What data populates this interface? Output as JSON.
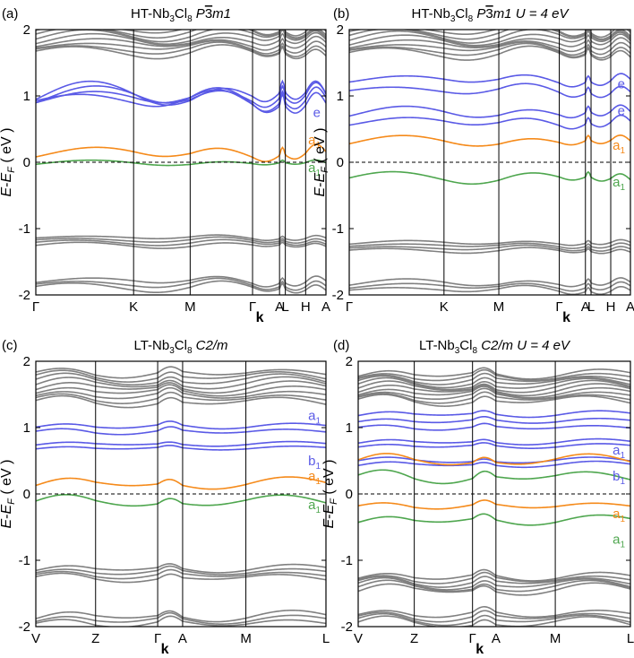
{
  "colors": {
    "gray": "#808080",
    "blue": "#5a5ae6",
    "orange": "#f58a1a",
    "green": "#4ea64e",
    "axis": "#000000"
  },
  "chart_data": [
    {
      "panel_label": "(a)",
      "type": "line",
      "title": "HT-Nb3Cl8 P-3m1",
      "title_parts": {
        "name": "HT-Nb",
        "sub1": "3",
        "mid": "Cl",
        "sub2": "8",
        "space": "P",
        "space_bar": "3",
        "space_tail": "m1",
        "extra": ""
      },
      "ylabel": "E-E_F (eV)",
      "xlabel": "k",
      "ylim": [
        -2,
        2
      ],
      "yticks": [
        -2,
        -1,
        0,
        1,
        2
      ],
      "ytick_labels": [
        "-2",
        "-1",
        "0",
        "1",
        "2"
      ],
      "kpoints": [
        "Γ",
        "K",
        "M",
        "Γ",
        "A",
        "L",
        "H",
        "A"
      ],
      "kpos": [
        0,
        0.337,
        0.532,
        0.747,
        0.84,
        0.86,
        0.93,
        1.0
      ],
      "band_labels": [
        {
          "text": "e",
          "sub": "",
          "y": 0.75,
          "color": "blue"
        },
        {
          "text": "a",
          "sub": "1",
          "y": 0.34,
          "color": "orange"
        },
        {
          "text": "a",
          "sub": "1",
          "y": -0.08,
          "color": "green"
        }
      ],
      "series": [
        {
          "name": "gray-upper",
          "color": "gray",
          "base": 1.82,
          "amp": 0.12,
          "count": 9,
          "spread": 0.18
        },
        {
          "name": "blue-e",
          "color": "blue",
          "base": 0.95,
          "amp": 0.22,
          "count": 4,
          "spread": 0.04
        },
        {
          "name": "orange-a1",
          "color": "orange",
          "base": 0.12,
          "amp": 0.15,
          "count": 1,
          "spread": 0
        },
        {
          "name": "green-a1",
          "color": "green",
          "base": -0.02,
          "amp": 0.05,
          "count": 1,
          "spread": 0
        },
        {
          "name": "gray-lower",
          "color": "gray",
          "base": -1.2,
          "amp": 0.05,
          "count": 4,
          "spread": 0.06
        },
        {
          "name": "gray-bottom",
          "color": "gray",
          "base": -1.85,
          "amp": 0.1,
          "count": 3,
          "spread": 0.05
        }
      ]
    },
    {
      "panel_label": "(b)",
      "type": "line",
      "title": "HT-Nb3Cl8 P-3m1 U = 4 eV",
      "title_parts": {
        "name": "HT-Nb",
        "sub1": "3",
        "mid": "Cl",
        "sub2": "8",
        "space": "P",
        "space_bar": "3",
        "space_tail": "m1",
        "extra": "U = 4 eV"
      },
      "ylabel": "E-E_F (eV)",
      "xlabel": "k",
      "ylim": [
        -2,
        2
      ],
      "yticks": [
        -2,
        -1,
        0,
        1,
        2
      ],
      "ytick_labels": [
        "-2",
        "-1",
        "0",
        "1",
        "2"
      ],
      "kpoints": [
        "Γ",
        "K",
        "M",
        "Γ",
        "A",
        "L",
        "H",
        "A"
      ],
      "kpos": [
        0,
        0.337,
        0.532,
        0.747,
        0.84,
        0.86,
        0.93,
        1.0
      ],
      "band_labels": [
        {
          "text": "e",
          "sub": "",
          "y": 1.18,
          "color": "blue"
        },
        {
          "text": "e",
          "sub": "",
          "y": 0.78,
          "color": "blue"
        },
        {
          "text": "a",
          "sub": "1",
          "y": 0.26,
          "color": "orange"
        },
        {
          "text": "a",
          "sub": "1",
          "y": -0.3,
          "color": "green"
        }
      ],
      "series": [
        {
          "name": "gray-upper",
          "color": "gray",
          "base": 1.8,
          "amp": 0.12,
          "count": 9,
          "spread": 0.18
        },
        {
          "name": "blue-e-upper",
          "color": "blue",
          "base": 1.15,
          "amp": 0.12,
          "count": 2,
          "spread": 0.08
        },
        {
          "name": "blue-e-lower",
          "color": "blue",
          "base": 0.66,
          "amp": 0.12,
          "count": 2,
          "spread": 0.07
        },
        {
          "name": "orange-a1",
          "color": "orange",
          "base": 0.3,
          "amp": 0.1,
          "count": 1,
          "spread": 0
        },
        {
          "name": "green-a1",
          "color": "green",
          "base": -0.25,
          "amp": 0.1,
          "count": 1,
          "spread": 0
        },
        {
          "name": "gray-lower",
          "color": "gray",
          "base": -1.28,
          "amp": 0.05,
          "count": 4,
          "spread": 0.06
        },
        {
          "name": "gray-bottom",
          "color": "gray",
          "base": -1.88,
          "amp": 0.08,
          "count": 3,
          "spread": 0.05
        }
      ]
    },
    {
      "panel_label": "(c)",
      "type": "line",
      "title": "LT-Nb3Cl8 C2/m",
      "title_parts": {
        "name": "LT-Nb",
        "sub1": "3",
        "mid": "Cl",
        "sub2": "8",
        "space": "C2/m",
        "space_bar": "",
        "space_tail": "",
        "extra": ""
      },
      "ylabel": "E-E_F (eV)",
      "xlabel": "k",
      "ylim": [
        -2,
        2
      ],
      "yticks": [
        -2,
        -1,
        0,
        1,
        2
      ],
      "ytick_labels": [
        "-2",
        "-1",
        "0",
        "1",
        "2"
      ],
      "kpoints": [
        "V",
        "Z",
        "Γ",
        "A",
        "M",
        "L"
      ],
      "kpos": [
        0,
        0.206,
        0.42,
        0.506,
        0.724,
        1.0
      ],
      "band_labels": [
        {
          "text": "a",
          "sub": "1",
          "y": 1.18,
          "color": "blue"
        },
        {
          "text": "b",
          "sub": "1",
          "y": 0.5,
          "color": "blue"
        },
        {
          "text": "a",
          "sub": "1",
          "y": 0.27,
          "color": "orange"
        },
        {
          "text": "a",
          "sub": "1",
          "y": -0.16,
          "color": "green"
        }
      ],
      "series": [
        {
          "name": "gray-upper",
          "color": "gray",
          "base": 1.6,
          "amp": 0.1,
          "count": 9,
          "spread": 0.22
        },
        {
          "name": "blue-a1",
          "color": "blue",
          "base": 0.98,
          "amp": 0.07,
          "count": 2,
          "spread": 0.04
        },
        {
          "name": "blue-b1",
          "color": "blue",
          "base": 0.72,
          "amp": 0.04,
          "count": 2,
          "spread": 0.03
        },
        {
          "name": "orange-a1",
          "color": "orange",
          "base": 0.15,
          "amp": 0.1,
          "count": 1,
          "spread": 0
        },
        {
          "name": "green-a1",
          "color": "green",
          "base": -0.12,
          "amp": 0.1,
          "count": 1,
          "spread": 0
        },
        {
          "name": "gray-lower",
          "color": "gray",
          "base": -1.2,
          "amp": 0.08,
          "count": 4,
          "spread": 0.07
        },
        {
          "name": "gray-bottom",
          "color": "gray",
          "base": -1.9,
          "amp": 0.1,
          "count": 3,
          "spread": 0.05
        }
      ]
    },
    {
      "panel_label": "(d)",
      "type": "line",
      "title": "LT-Nb3Cl8 C2/m U = 4 eV",
      "title_parts": {
        "name": "LT-Nb",
        "sub1": "3",
        "mid": "Cl",
        "sub2": "8",
        "space": "C2/m",
        "space_bar": "",
        "space_tail": "",
        "extra": "U = 4 eV"
      },
      "ylabel": "E-E_F (eV)",
      "xlabel": "k",
      "ylim": [
        -2,
        2
      ],
      "yticks": [
        -2,
        -1,
        0,
        1,
        2
      ],
      "ytick_labels": [
        "-2",
        "-1",
        "0",
        "1",
        "2"
      ],
      "kpoints": [
        "V",
        "Z",
        "Γ",
        "A",
        "M",
        "L"
      ],
      "kpos": [
        0,
        0.206,
        0.42,
        0.506,
        0.724,
        1.0
      ],
      "band_labels": [
        {
          "text": "a",
          "sub": "1",
          "y": 0.66,
          "color": "blue"
        },
        {
          "text": "b",
          "sub": "1",
          "y": 0.27,
          "color": "blue"
        },
        {
          "text": "a",
          "sub": "1",
          "y": -0.3,
          "color": "orange"
        },
        {
          "text": "a",
          "sub": "1",
          "y": -0.68,
          "color": "green"
        }
      ],
      "series": [
        {
          "name": "gray-upper",
          "color": "gray",
          "base": 1.6,
          "amp": 0.1,
          "count": 11,
          "spread": 0.2
        },
        {
          "name": "blue-upper",
          "color": "blue",
          "base": 1.1,
          "amp": 0.06,
          "count": 3,
          "spread": 0.1
        },
        {
          "name": "blue-mid",
          "color": "blue",
          "base": 0.75,
          "amp": 0.05,
          "count": 2,
          "spread": 0.03
        },
        {
          "name": "blue-b1",
          "color": "blue",
          "base": 0.47,
          "amp": 0.05,
          "count": 2,
          "spread": 0.03
        },
        {
          "name": "orange-upper",
          "color": "orange",
          "base": 0.5,
          "amp": 0.1,
          "count": 1,
          "spread": 0
        },
        {
          "name": "green-upper",
          "color": "green",
          "base": 0.25,
          "amp": 0.12,
          "count": 1,
          "spread": 0
        },
        {
          "name": "orange-a1",
          "color": "orange",
          "base": -0.18,
          "amp": 0.08,
          "count": 1,
          "spread": 0
        },
        {
          "name": "green-a1",
          "color": "green",
          "base": -0.4,
          "amp": 0.1,
          "count": 1,
          "spread": 0
        },
        {
          "name": "gray-lower",
          "color": "gray",
          "base": -1.35,
          "amp": 0.1,
          "count": 6,
          "spread": 0.1
        },
        {
          "name": "gray-bottom",
          "color": "gray",
          "base": -1.88,
          "amp": 0.1,
          "count": 4,
          "spread": 0.07
        }
      ]
    }
  ]
}
